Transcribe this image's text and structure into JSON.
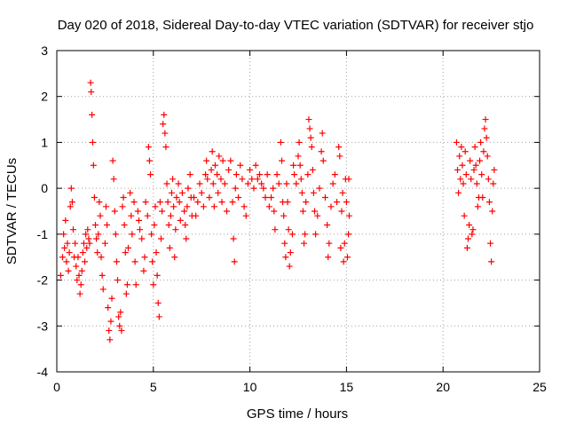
{
  "chart_data": {
    "type": "scatter",
    "title": "Day 020 of 2018, Sidereal Day-to-day VTEC variation (SDTVAR) for receiver stjo",
    "xlabel": "GPS time / hours",
    "ylabel": "SDTVAR / TECUs",
    "xlim": [
      0,
      25
    ],
    "ylim": [
      -4,
      3
    ],
    "xticks": [
      0,
      5,
      10,
      15,
      20,
      25
    ],
    "yticks": [
      -4,
      -3,
      -2,
      -1,
      0,
      1,
      2,
      3
    ],
    "grid": true,
    "marker": "+",
    "colors": {
      "points": "#ff0000",
      "axes": "#000000",
      "grid": "#a0a0a0"
    },
    "series": [
      {
        "name": "SDTVAR",
        "points": [
          [
            0.2,
            -1.9
          ],
          [
            0.3,
            -1.5
          ],
          [
            0.35,
            -1.0
          ],
          [
            0.4,
            -1.3
          ],
          [
            0.45,
            -0.7
          ],
          [
            0.5,
            -1.6
          ],
          [
            0.55,
            -1.2
          ],
          [
            0.6,
            -1.8
          ],
          [
            0.65,
            -1.4
          ],
          [
            0.7,
            -0.4
          ],
          [
            0.75,
            0.0
          ],
          [
            0.8,
            -0.3
          ],
          [
            0.85,
            -0.9
          ],
          [
            0.9,
            -1.5
          ],
          [
            0.95,
            -1.2
          ],
          [
            1.0,
            -1.7
          ],
          [
            1.05,
            -2.0
          ],
          [
            1.1,
            -1.5
          ],
          [
            1.15,
            -1.9
          ],
          [
            1.2,
            -2.3
          ],
          [
            1.25,
            -2.1
          ],
          [
            1.3,
            -1.8
          ],
          [
            1.35,
            -1.4
          ],
          [
            1.4,
            -1.2
          ],
          [
            1.45,
            -1.6
          ],
          [
            1.5,
            -1.0
          ],
          [
            1.55,
            -1.3
          ],
          [
            1.6,
            -0.9
          ],
          [
            1.65,
            -1.1
          ],
          [
            1.7,
            -1.2
          ],
          [
            1.75,
            2.3
          ],
          [
            1.78,
            2.1
          ],
          [
            1.82,
            1.6
          ],
          [
            1.86,
            1.0
          ],
          [
            1.9,
            0.5
          ],
          [
            1.95,
            -0.2
          ],
          [
            2.0,
            -0.8
          ],
          [
            2.05,
            -1.1
          ],
          [
            2.1,
            -1.4
          ],
          [
            2.15,
            -1.0
          ],
          [
            2.2,
            -0.3
          ],
          [
            2.25,
            -0.6
          ],
          [
            2.3,
            -1.5
          ],
          [
            2.35,
            -1.9
          ],
          [
            2.4,
            -2.2
          ],
          [
            2.5,
            -1.2
          ],
          [
            2.55,
            -0.4
          ],
          [
            2.6,
            -0.8
          ],
          [
            2.65,
            -2.6
          ],
          [
            2.7,
            -3.1
          ],
          [
            2.75,
            -3.3
          ],
          [
            2.8,
            -2.9
          ],
          [
            2.85,
            -2.4
          ],
          [
            2.9,
            0.6
          ],
          [
            2.95,
            0.2
          ],
          [
            3.0,
            -0.5
          ],
          [
            3.05,
            -1.0
          ],
          [
            3.1,
            -1.6
          ],
          [
            3.15,
            -2.0
          ],
          [
            3.2,
            -2.8
          ],
          [
            3.25,
            -3.0
          ],
          [
            3.3,
            -2.7
          ],
          [
            3.35,
            -3.1
          ],
          [
            3.4,
            -0.4
          ],
          [
            3.45,
            -0.2
          ],
          [
            3.5,
            -0.8
          ],
          [
            3.55,
            -1.4
          ],
          [
            3.6,
            -2.3
          ],
          [
            3.65,
            -2.1
          ],
          [
            3.7,
            -1.3
          ],
          [
            3.8,
            -0.1
          ],
          [
            3.85,
            -0.6
          ],
          [
            3.9,
            -1.0
          ],
          [
            4.0,
            -0.3
          ],
          [
            4.05,
            -1.6
          ],
          [
            4.1,
            -2.1
          ],
          [
            4.2,
            -0.5
          ],
          [
            4.25,
            -0.7
          ],
          [
            4.3,
            -0.9
          ],
          [
            4.4,
            -1.1
          ],
          [
            4.5,
            -1.8
          ],
          [
            4.55,
            -1.5
          ],
          [
            4.6,
            -0.3
          ],
          [
            4.7,
            -0.6
          ],
          [
            4.75,
            0.9
          ],
          [
            4.8,
            0.6
          ],
          [
            4.85,
            0.3
          ],
          [
            4.9,
            -1.0
          ],
          [
            4.95,
            -1.6
          ],
          [
            5.0,
            -2.1
          ],
          [
            5.05,
            -0.8
          ],
          [
            5.1,
            -0.4
          ],
          [
            5.15,
            -1.4
          ],
          [
            5.2,
            -1.9
          ],
          [
            5.25,
            -2.5
          ],
          [
            5.3,
            -2.8
          ],
          [
            5.35,
            -0.3
          ],
          [
            5.4,
            -1.1
          ],
          [
            5.45,
            -0.5
          ],
          [
            5.5,
            1.4
          ],
          [
            5.55,
            1.6
          ],
          [
            5.6,
            1.2
          ],
          [
            5.65,
            0.9
          ],
          [
            5.7,
            0.1
          ],
          [
            5.75,
            -0.3
          ],
          [
            5.8,
            -0.8
          ],
          [
            5.85,
            -1.3
          ],
          [
            5.9,
            -0.6
          ],
          [
            5.95,
            -0.1
          ],
          [
            6.0,
            0.2
          ],
          [
            6.05,
            -0.4
          ],
          [
            6.1,
            -1.5
          ],
          [
            6.15,
            -0.9
          ],
          [
            6.2,
            -0.2
          ],
          [
            6.3,
            0.1
          ],
          [
            6.35,
            -0.3
          ],
          [
            6.4,
            -0.7
          ],
          [
            6.5,
            -0.1
          ],
          [
            6.6,
            -0.5
          ],
          [
            6.65,
            -0.8
          ],
          [
            6.7,
            -1.1
          ],
          [
            6.75,
            -0.4
          ],
          [
            6.8,
            0.0
          ],
          [
            6.9,
            0.3
          ],
          [
            6.95,
            -0.2
          ],
          [
            7.0,
            -0.6
          ],
          [
            7.1,
            -0.2
          ],
          [
            7.2,
            -0.6
          ],
          [
            7.3,
            -0.3
          ],
          [
            7.4,
            0.1
          ],
          [
            7.5,
            -0.1
          ],
          [
            7.6,
            -0.4
          ],
          [
            7.7,
            0.3
          ],
          [
            7.75,
            0.6
          ],
          [
            7.8,
            0.2
          ],
          [
            7.9,
            -0.2
          ],
          [
            8.0,
            0.4
          ],
          [
            8.05,
            0.8
          ],
          [
            8.1,
            0.1
          ],
          [
            8.15,
            -0.4
          ],
          [
            8.2,
            0.5
          ],
          [
            8.3,
            0.3
          ],
          [
            8.35,
            -0.1
          ],
          [
            8.4,
            0.7
          ],
          [
            8.5,
            0.2
          ],
          [
            8.55,
            -0.3
          ],
          [
            8.6,
            0.6
          ],
          [
            8.7,
            0.1
          ],
          [
            8.8,
            -0.5
          ],
          [
            8.9,
            0.4
          ],
          [
            9.0,
            0.6
          ],
          [
            9.1,
            -0.3
          ],
          [
            9.15,
            -1.1
          ],
          [
            9.2,
            -1.6
          ],
          [
            9.25,
            0.0
          ],
          [
            9.3,
            0.3
          ],
          [
            9.4,
            -0.2
          ],
          [
            9.5,
            0.5
          ],
          [
            9.6,
            0.2
          ],
          [
            9.7,
            -0.4
          ],
          [
            9.8,
            -0.6
          ],
          [
            9.9,
            0.1
          ],
          [
            10.0,
            0.4
          ],
          [
            10.1,
            0.2
          ],
          [
            10.2,
            0.0
          ],
          [
            10.3,
            0.5
          ],
          [
            10.4,
            0.2
          ],
          [
            10.5,
            0.3
          ],
          [
            10.6,
            0.1
          ],
          [
            10.7,
            0.0
          ],
          [
            10.8,
            -0.2
          ],
          [
            10.9,
            0.3
          ],
          [
            11.0,
            -0.4
          ],
          [
            11.1,
            -0.2
          ],
          [
            11.2,
            0.0
          ],
          [
            11.25,
            -0.5
          ],
          [
            11.3,
            -0.9
          ],
          [
            11.4,
            0.3
          ],
          [
            11.5,
            0.1
          ],
          [
            11.6,
            1.0
          ],
          [
            11.65,
            0.6
          ],
          [
            11.7,
            -0.3
          ],
          [
            11.75,
            -0.6
          ],
          [
            11.8,
            -1.2
          ],
          [
            11.85,
            -1.5
          ],
          [
            11.9,
            0.1
          ],
          [
            11.95,
            -0.3
          ],
          [
            12.0,
            -0.9
          ],
          [
            12.05,
            -1.7
          ],
          [
            12.1,
            -1.4
          ],
          [
            12.2,
            -1.0
          ],
          [
            12.25,
            0.5
          ],
          [
            12.3,
            0.3
          ],
          [
            12.4,
            0.1
          ],
          [
            12.5,
            0.7
          ],
          [
            12.55,
            1.0
          ],
          [
            12.6,
            0.5
          ],
          [
            12.65,
            0.2
          ],
          [
            12.7,
            -0.1
          ],
          [
            12.75,
            -0.5
          ],
          [
            12.8,
            -1.2
          ],
          [
            12.85,
            -1.0
          ],
          [
            12.9,
            -0.3
          ],
          [
            13.0,
            0.3
          ],
          [
            13.05,
            1.5
          ],
          [
            13.1,
            1.3
          ],
          [
            13.15,
            1.1
          ],
          [
            13.2,
            0.9
          ],
          [
            13.25,
            0.4
          ],
          [
            13.3,
            -0.1
          ],
          [
            13.35,
            -0.5
          ],
          [
            13.4,
            -1.0
          ],
          [
            13.5,
            -0.6
          ],
          [
            13.6,
            0.0
          ],
          [
            13.7,
            0.8
          ],
          [
            13.75,
            1.2
          ],
          [
            13.8,
            0.6
          ],
          [
            13.9,
            -0.2
          ],
          [
            14.0,
            -0.8
          ],
          [
            14.05,
            -1.5
          ],
          [
            14.1,
            -1.2
          ],
          [
            14.2,
            -0.4
          ],
          [
            14.3,
            0.1
          ],
          [
            14.4,
            0.3
          ],
          [
            14.5,
            -0.3
          ],
          [
            14.6,
            0.9
          ],
          [
            14.65,
            0.7
          ],
          [
            14.7,
            -1.3
          ],
          [
            14.75,
            -0.5
          ],
          [
            14.8,
            -0.1
          ],
          [
            14.85,
            -1.6
          ],
          [
            14.9,
            -1.2
          ],
          [
            14.95,
            0.2
          ],
          [
            15.0,
            -0.3
          ],
          [
            15.05,
            -1.5
          ],
          [
            15.1,
            -1.0
          ],
          [
            15.12,
            0.2
          ],
          [
            15.14,
            -0.6
          ],
          [
            20.7,
            1.0
          ],
          [
            20.75,
            0.4
          ],
          [
            20.8,
            -0.1
          ],
          [
            20.85,
            0.7
          ],
          [
            20.9,
            0.2
          ],
          [
            20.95,
            0.9
          ],
          [
            21.0,
            0.5
          ],
          [
            21.05,
            0.1
          ],
          [
            21.1,
            -0.6
          ],
          [
            21.15,
            0.8
          ],
          [
            21.2,
            0.3
          ],
          [
            21.25,
            -1.3
          ],
          [
            21.3,
            -1.1
          ],
          [
            21.35,
            -0.8
          ],
          [
            21.4,
            0.6
          ],
          [
            21.45,
            0.2
          ],
          [
            21.5,
            -1.0
          ],
          [
            21.55,
            -0.9
          ],
          [
            21.6,
            0.4
          ],
          [
            21.65,
            0.9
          ],
          [
            21.7,
            0.5
          ],
          [
            21.75,
            0.1
          ],
          [
            21.8,
            -0.4
          ],
          [
            21.85,
            -0.2
          ],
          [
            21.9,
            0.6
          ],
          [
            21.95,
            1.0
          ],
          [
            22.0,
            0.3
          ],
          [
            22.05,
            -0.2
          ],
          [
            22.1,
            0.8
          ],
          [
            22.15,
            1.3
          ],
          [
            22.2,
            1.5
          ],
          [
            22.25,
            1.1
          ],
          [
            22.3,
            0.7
          ],
          [
            22.35,
            0.2
          ],
          [
            22.4,
            -0.3
          ],
          [
            22.45,
            -1.2
          ],
          [
            22.5,
            -1.6
          ],
          [
            22.55,
            -0.5
          ],
          [
            22.6,
            0.1
          ],
          [
            22.65,
            0.4
          ]
        ]
      }
    ]
  }
}
